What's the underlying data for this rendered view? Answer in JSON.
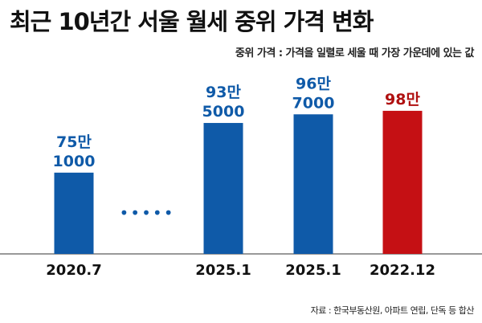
{
  "chart_data": {
    "type": "bar",
    "title": "최근 10년간 서울 월세 중위 가격 변화",
    "subtitle": "중위 가격 : 가격을 일렬로 세울 때 가장 가운데에 있는 값",
    "source": "자료 : 한국부동산원, 아파트 연립, 단독 등 합산",
    "categories": [
      "2020.7",
      "2025.1",
      "2025.1",
      "2022.12"
    ],
    "values": [
      75.1,
      93.5,
      96.7,
      98
    ],
    "unit": "만원",
    "data_labels": [
      [
        "75만",
        "1000"
      ],
      [
        "93만",
        "5000"
      ],
      [
        "96만",
        "7000"
      ],
      [
        "98만"
      ]
    ],
    "colors": [
      "#0f5aa8",
      "#0f5aa8",
      "#0f5aa8",
      "#c51014"
    ],
    "label_colors": [
      "#0f5aa8",
      "#0f5aa8",
      "#0f5aa8",
      "#b01010"
    ],
    "gap_marker": "•••••",
    "ylim": [
      45,
      100
    ]
  }
}
